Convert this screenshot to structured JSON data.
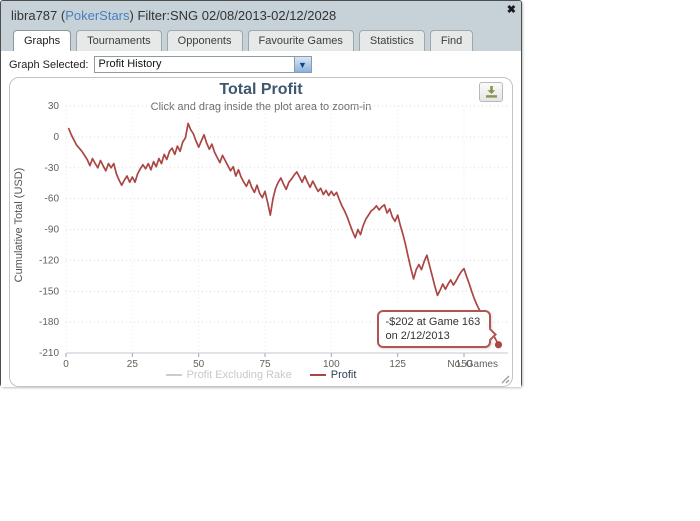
{
  "window": {
    "title_pre": "libra787 (",
    "title_site": "PokerStars",
    "title_post": ") Filter:SNG 02/08/2013-02/12/2028",
    "close_icon": "✖"
  },
  "tabs": [
    {
      "label": "Graphs",
      "active": true
    },
    {
      "label": "Tournaments",
      "active": false
    },
    {
      "label": "Opponents",
      "active": false
    },
    {
      "label": "Favourite Games",
      "active": false
    },
    {
      "label": "Statistics",
      "active": false
    },
    {
      "label": "Find",
      "active": false
    }
  ],
  "toolbar": {
    "graph_selected_label": "Graph Selected:",
    "graph_selected_value": "Profit History",
    "dropdown_arrow_icon": "▼"
  },
  "chart_data": {
    "type": "line",
    "title": "Total Profit",
    "subtitle": "Click and drag inside the plot area to zoom-in",
    "ylabel": "Cumulative Total (USD)",
    "xlabel": "No. Games",
    "xlim": [
      0,
      167
    ],
    "ylim": [
      -210,
      30
    ],
    "x_ticks": [
      0,
      25,
      50,
      75,
      100,
      125,
      150
    ],
    "y_ticks": [
      30,
      0,
      -30,
      -60,
      -90,
      -120,
      -150,
      -180,
      -210
    ],
    "grid": true,
    "legend_position": "bottom",
    "colors": {
      "line": "#aa4643",
      "disabled": "#cccccc",
      "grid_h": "#d9d9d9",
      "grid_v": "#e9e9e9",
      "axis": "#c0c8d0",
      "tick_text": "#606060"
    },
    "series": [
      {
        "name": "Profit Excluding Rake",
        "color": "#cccccc",
        "enabled": false,
        "points": []
      },
      {
        "name": "Profit",
        "color": "#aa4643",
        "enabled": true,
        "points": [
          [
            1,
            8
          ],
          [
            2,
            2
          ],
          [
            4,
            -8
          ],
          [
            6,
            -14
          ],
          [
            8,
            -22
          ],
          [
            9,
            -28
          ],
          [
            10,
            -21
          ],
          [
            11,
            -26
          ],
          [
            12,
            -30
          ],
          [
            13,
            -23
          ],
          [
            14,
            -28
          ],
          [
            15,
            -33
          ],
          [
            16,
            -26
          ],
          [
            17,
            -30
          ],
          [
            18,
            -26
          ],
          [
            19,
            -36
          ],
          [
            20,
            -42
          ],
          [
            21,
            -47
          ],
          [
            22,
            -42
          ],
          [
            23,
            -38
          ],
          [
            24,
            -44
          ],
          [
            25,
            -39
          ],
          [
            26,
            -44
          ],
          [
            27,
            -36
          ],
          [
            28,
            -31
          ],
          [
            29,
            -27
          ],
          [
            30,
            -31
          ],
          [
            31,
            -26
          ],
          [
            32,
            -32
          ],
          [
            33,
            -24
          ],
          [
            34,
            -29
          ],
          [
            35,
            -21
          ],
          [
            36,
            -26
          ],
          [
            37,
            -17
          ],
          [
            38,
            -22
          ],
          [
            39,
            -14
          ],
          [
            40,
            -11
          ],
          [
            41,
            -17
          ],
          [
            42,
            -9
          ],
          [
            43,
            -14
          ],
          [
            44,
            -5
          ],
          [
            45,
            -1
          ],
          [
            46,
            13
          ],
          [
            47,
            7
          ],
          [
            48,
            3
          ],
          [
            49,
            -4
          ],
          [
            50,
            -10
          ],
          [
            51,
            -4
          ],
          [
            52,
            2
          ],
          [
            53,
            -6
          ],
          [
            54,
            -12
          ],
          [
            55,
            -7
          ],
          [
            56,
            -15
          ],
          [
            57,
            -20
          ],
          [
            58,
            -25
          ],
          [
            59,
            -18
          ],
          [
            60,
            -23
          ],
          [
            61,
            -28
          ],
          [
            62,
            -33
          ],
          [
            63,
            -29
          ],
          [
            64,
            -38
          ],
          [
            65,
            -32
          ],
          [
            66,
            -39
          ],
          [
            67,
            -44
          ],
          [
            68,
            -48
          ],
          [
            69,
            -42
          ],
          [
            70,
            -49
          ],
          [
            71,
            -54
          ],
          [
            72,
            -47
          ],
          [
            73,
            -55
          ],
          [
            74,
            -59
          ],
          [
            75,
            -53
          ],
          [
            76,
            -64
          ],
          [
            77,
            -76
          ],
          [
            78,
            -60
          ],
          [
            79,
            -50
          ],
          [
            80,
            -44
          ],
          [
            81,
            -40
          ],
          [
            82,
            -46
          ],
          [
            83,
            -51
          ],
          [
            84,
            -44
          ],
          [
            85,
            -41
          ],
          [
            86,
            -37
          ],
          [
            87,
            -34
          ],
          [
            88,
            -39
          ],
          [
            89,
            -44
          ],
          [
            90,
            -38
          ],
          [
            91,
            -44
          ],
          [
            92,
            -49
          ],
          [
            93,
            -43
          ],
          [
            94,
            -48
          ],
          [
            95,
            -53
          ],
          [
            96,
            -50
          ],
          [
            97,
            -56
          ],
          [
            98,
            -52
          ],
          [
            99,
            -57
          ],
          [
            100,
            -53
          ],
          [
            101,
            -57
          ],
          [
            102,
            -54
          ],
          [
            103,
            -61
          ],
          [
            104,
            -67
          ],
          [
            105,
            -72
          ],
          [
            106,
            -78
          ],
          [
            107,
            -85
          ],
          [
            108,
            -92
          ],
          [
            109,
            -98
          ],
          [
            110,
            -90
          ],
          [
            111,
            -95
          ],
          [
            112,
            -86
          ],
          [
            113,
            -80
          ],
          [
            114,
            -76
          ],
          [
            115,
            -72
          ],
          [
            116,
            -70
          ],
          [
            117,
            -67
          ],
          [
            118,
            -71
          ],
          [
            119,
            -68
          ],
          [
            120,
            -66
          ],
          [
            121,
            -74
          ],
          [
            122,
            -70
          ],
          [
            123,
            -78
          ],
          [
            124,
            -82
          ],
          [
            125,
            -76
          ],
          [
            126,
            -86
          ],
          [
            127,
            -95
          ],
          [
            128,
            -105
          ],
          [
            129,
            -117
          ],
          [
            130,
            -128
          ],
          [
            131,
            -138
          ],
          [
            132,
            -129
          ],
          [
            133,
            -124
          ],
          [
            134,
            -129
          ],
          [
            135,
            -121
          ],
          [
            136,
            -115
          ],
          [
            137,
            -125
          ],
          [
            138,
            -135
          ],
          [
            139,
            -145
          ],
          [
            140,
            -154
          ],
          [
            141,
            -149
          ],
          [
            142,
            -143
          ],
          [
            143,
            -148
          ],
          [
            144,
            -143
          ],
          [
            145,
            -139
          ],
          [
            146,
            -144
          ],
          [
            147,
            -140
          ],
          [
            148,
            -135
          ],
          [
            149,
            -131
          ],
          [
            150,
            -128
          ],
          [
            151,
            -136
          ],
          [
            152,
            -143
          ],
          [
            153,
            -151
          ],
          [
            154,
            -158
          ],
          [
            155,
            -164
          ],
          [
            156,
            -169
          ],
          [
            157,
            -174
          ],
          [
            158,
            -179
          ],
          [
            159,
            -184
          ],
          [
            160,
            -188
          ],
          [
            161,
            -192
          ],
          [
            162,
            -197
          ],
          [
            163,
            -202
          ]
        ]
      }
    ],
    "annotation": {
      "text": "-$202 at Game 163 on 2/12/2013",
      "point": [
        163,
        -202
      ]
    }
  }
}
